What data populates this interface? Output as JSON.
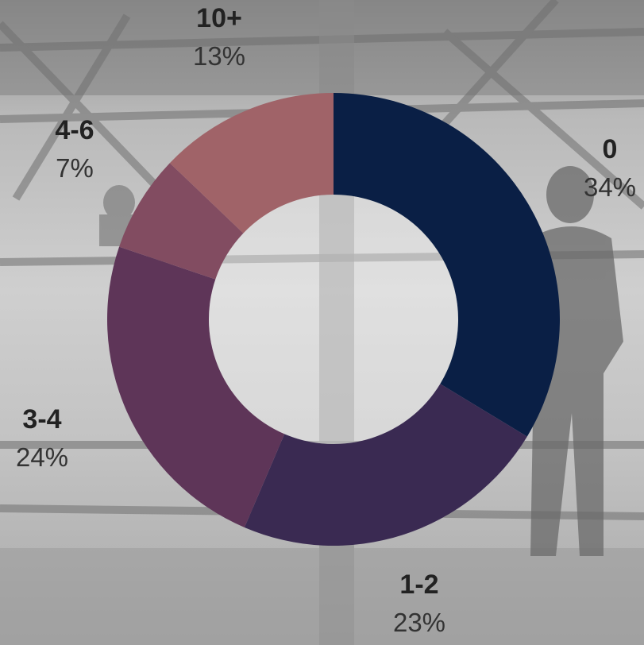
{
  "chart_data": {
    "type": "pie",
    "donut": true,
    "categories": [
      "0",
      "1-2",
      "3-4",
      "4-6",
      "10+"
    ],
    "values": [
      34,
      23,
      24,
      7,
      13
    ],
    "labels": [
      "34%",
      "23%",
      "24%",
      "7%",
      "13%"
    ],
    "colors": [
      "#0a1f45",
      "#3a2a52",
      "#5e3558",
      "#824c61",
      "#a06368"
    ],
    "title": "",
    "xlabel": "",
    "ylabel": ""
  }
}
